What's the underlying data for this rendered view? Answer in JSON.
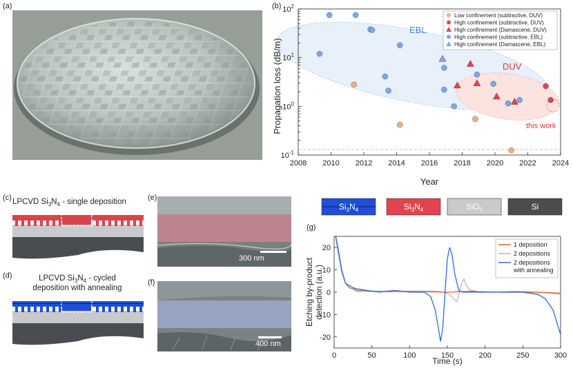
{
  "panels": {
    "a": {
      "label": "(a)"
    },
    "b": {
      "label": "(b)"
    },
    "c": {
      "label": "(c)",
      "title_prefix": "LPCVD Si",
      "sub1": "3",
      "title_mid": "N",
      "sub2": "4",
      "title_suffix": " - single deposition"
    },
    "d": {
      "label": "(d)",
      "line1_prefix": "LPCVD Si",
      "sub1": "3",
      "line1_mid": "N",
      "sub2": "4",
      "line1_suffix": " - cycled",
      "line2": "deposition with annealing"
    },
    "e": {
      "label": "(e)",
      "scalebar": "300 nm"
    },
    "f": {
      "label": "(f)",
      "scalebar": "400 nm"
    },
    "g": {
      "label": "(g)"
    }
  },
  "materials_legend": [
    {
      "name": "Si",
      "sub1": "3",
      "mid": "N",
      "sub2": "4",
      "color": "#1f4fd8",
      "text_color": "#ffffff"
    },
    {
      "name": "Si",
      "sub1": "3",
      "mid": "N",
      "sub2": "4",
      "color": "#e0454f",
      "text_color": "#ffffff"
    },
    {
      "name": "SiO",
      "sub1": "2",
      "mid": "",
      "sub2": "",
      "color": "#c8cacb",
      "text_color": "#ffffff"
    },
    {
      "name": "Si",
      "sub1": "",
      "mid": "",
      "sub2": "",
      "color": "#4a4d50",
      "text_color": "#ffffff"
    }
  ],
  "chart_data": [
    {
      "id": "b",
      "type": "scatter",
      "xlabel": "Year",
      "ylabel": "Propagation loss (dB/m)",
      "xlim": [
        2008,
        2024
      ],
      "ylim": [
        0.1,
        100
      ],
      "yscale": "log",
      "xticks": [
        "2008",
        "2010",
        "2012",
        "2014",
        "2016",
        "2018",
        "2020",
        "2022",
        "2024"
      ],
      "yticks": [
        {
          "base": "10",
          "exp": "-1"
        },
        {
          "base": "10",
          "exp": "0"
        },
        {
          "base": "10",
          "exp": "1"
        },
        {
          "base": "10",
          "exp": "2"
        }
      ],
      "region_labels": {
        "ebl": "EBL",
        "duv": "DUV",
        "this_work": "this work"
      },
      "reference_line": 0.13,
      "series": [
        {
          "name": "Low confinement (subtractive, DUV)",
          "marker": "circle",
          "color": "#f5b070",
          "points": [
            [
              2011.4,
              2.8
            ],
            [
              2014.2,
              0.42
            ],
            [
              2018.8,
              0.55
            ],
            [
              2021.0,
              0.125
            ]
          ]
        },
        {
          "name": "High confinement (subtractive, DUV)",
          "marker": "circle",
          "color": "#e0454f",
          "points": [
            [
              2023.1,
              2.6
            ],
            [
              2023.4,
              1.35
            ]
          ]
        },
        {
          "name": "High confinement (Damascene, DUV)",
          "marker": "triangle",
          "color": "#e0454f",
          "points": [
            [
              2018.5,
              7.5
            ],
            [
              2017.7,
              2.7
            ],
            [
              2018.9,
              3.0
            ],
            [
              2020.1,
              1.6
            ],
            [
              2021.2,
              1.25
            ]
          ]
        },
        {
          "name": "High confinement (subtractive, EBL)",
          "marker": "circle",
          "color": "#7fa8e6",
          "points": [
            [
              2009.3,
              12.0
            ],
            [
              2009.9,
              75.0
            ],
            [
              2011.5,
              75.0
            ],
            [
              2012.4,
              38.0
            ],
            [
              2012.5,
              37.0
            ],
            [
              2013.3,
              4.1
            ],
            [
              2013.5,
              2.1
            ],
            [
              2014.2,
              18.0
            ],
            [
              2016.9,
              6.2
            ],
            [
              2016.9,
              2.2
            ],
            [
              2017.5,
              1.0
            ],
            [
              2018.9,
              4.5
            ],
            [
              2019.9,
              2.9
            ],
            [
              2020.8,
              1.15
            ],
            [
              2021.5,
              1.35
            ]
          ]
        },
        {
          "name": "High confinement (Damascene, EBL)",
          "marker": "triangle",
          "color": "#7fa8e6",
          "points": [
            [
              2016.8,
              9.5
            ]
          ]
        }
      ]
    },
    {
      "id": "g",
      "type": "line",
      "xlabel": "Time (s)",
      "ylabel": "Etching by-product detection (a.u.)",
      "xlim": [
        0,
        300
      ],
      "ylim": [
        -25,
        25
      ],
      "xticks": [
        "0",
        "50",
        "100",
        "150",
        "200",
        "250",
        "300"
      ],
      "yticks": [
        "-20",
        "-10",
        "0",
        "10",
        "20"
      ],
      "series": [
        {
          "name": "1 deposition",
          "color": "#e8602c",
          "points": [
            [
              0,
              25
            ],
            [
              2,
              25
            ],
            [
              5,
              20
            ],
            [
              10,
              10
            ],
            [
              15,
              4
            ],
            [
              20,
              2
            ],
            [
              25,
              1.5
            ],
            [
              30,
              0.5
            ],
            [
              40,
              0.5
            ],
            [
              60,
              0.2
            ],
            [
              90,
              0.3
            ],
            [
              120,
              0.2
            ],
            [
              150,
              0
            ],
            [
              180,
              0.4
            ],
            [
              210,
              0
            ],
            [
              240,
              0.3
            ],
            [
              270,
              0
            ],
            [
              300,
              -0.4
            ]
          ]
        },
        {
          "name": "2 depositions",
          "color": "#b7b7b7",
          "points": [
            [
              0,
              25
            ],
            [
              2,
              25
            ],
            [
              5,
              18
            ],
            [
              10,
              9
            ],
            [
              15,
              4
            ],
            [
              20,
              3
            ],
            [
              25,
              2
            ],
            [
              30,
              1
            ],
            [
              50,
              0.5
            ],
            [
              80,
              0.5
            ],
            [
              110,
              0.5
            ],
            [
              130,
              0.5
            ],
            [
              140,
              0.3
            ],
            [
              150,
              -0.5
            ],
            [
              156,
              -2
            ],
            [
              160,
              -3.5
            ],
            [
              163,
              -4
            ],
            [
              166,
              0
            ],
            [
              169,
              4
            ],
            [
              172,
              6
            ],
            [
              175,
              3
            ],
            [
              180,
              1
            ],
            [
              190,
              0.3
            ],
            [
              220,
              0
            ],
            [
              250,
              0
            ],
            [
              280,
              -0.3
            ],
            [
              300,
              -1
            ]
          ]
        },
        {
          "name": "2 depositions with annealing",
          "color": "#2a6be0",
          "points": [
            [
              0,
              25
            ],
            [
              2,
              25
            ],
            [
              5,
              20
            ],
            [
              10,
              10
            ],
            [
              15,
              4
            ],
            [
              20,
              3
            ],
            [
              25,
              2
            ],
            [
              30,
              1.5
            ],
            [
              40,
              1
            ],
            [
              60,
              0
            ],
            [
              80,
              0.8
            ],
            [
              100,
              0
            ],
            [
              120,
              0
            ],
            [
              128,
              -2
            ],
            [
              134,
              -8
            ],
            [
              138,
              -16
            ],
            [
              141,
              -22
            ],
            [
              144,
              -16
            ],
            [
              147,
              0
            ],
            [
              150,
              15
            ],
            [
              153,
              20
            ],
            [
              156,
              17
            ],
            [
              160,
              8
            ],
            [
              165,
              1
            ],
            [
              170,
              0
            ],
            [
              190,
              0
            ],
            [
              220,
              0
            ],
            [
              250,
              0
            ],
            [
              270,
              -1
            ],
            [
              280,
              -3
            ],
            [
              290,
              -8
            ],
            [
              300,
              -19
            ]
          ]
        }
      ]
    }
  ]
}
